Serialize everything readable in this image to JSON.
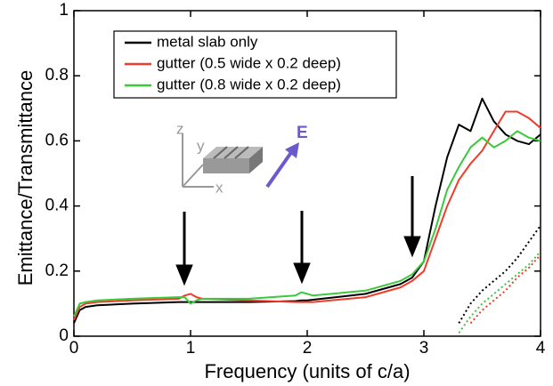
{
  "chart_data": {
    "type": "line",
    "xlabel": "Frequency (units of c/a)",
    "ylabel": "Emittance/Transmittance",
    "x": [
      0,
      0.05,
      0.1,
      0.2,
      0.5,
      0.9,
      0.95,
      1,
      1.05,
      1.1,
      1.5,
      1.9,
      1.95,
      2,
      2.05,
      2.5,
      2.8,
      2.9,
      3,
      3.1,
      3.2,
      3.3,
      3.4,
      3.5,
      3.6,
      3.7,
      3.8,
      3.9,
      4
    ],
    "series": [
      {
        "name": "metal slab only",
        "color": "#000000",
        "style": "solid",
        "values": [
          0.04,
          0.08,
          0.09,
          0.095,
          0.1,
          0.105,
          0.105,
          0.105,
          0.105,
          0.105,
          0.105,
          0.108,
          0.11,
          0.11,
          0.112,
          0.13,
          0.16,
          0.18,
          0.23,
          0.4,
          0.55,
          0.65,
          0.63,
          0.73,
          0.66,
          0.62,
          0.6,
          0.59,
          0.62
        ]
      },
      {
        "name": "gutter (0.5 wide x 0.2 deep)",
        "color": "#f03c28",
        "style": "solid",
        "values": [
          0.05,
          0.09,
          0.1,
          0.105,
          0.11,
          0.115,
          0.125,
          0.13,
          0.12,
          0.115,
          0.11,
          0.105,
          0.105,
          0.105,
          0.105,
          0.12,
          0.15,
          0.17,
          0.2,
          0.3,
          0.4,
          0.48,
          0.53,
          0.57,
          0.63,
          0.69,
          0.69,
          0.67,
          0.64
        ]
      },
      {
        "name": "gutter (0.8 wide x 0.2 deep)",
        "color": "#3cc83c",
        "style": "solid",
        "values": [
          0.06,
          0.1,
          0.105,
          0.11,
          0.115,
          0.12,
          0.12,
          0.1,
          0.11,
          0.115,
          0.115,
          0.125,
          0.135,
          0.13,
          0.125,
          0.14,
          0.17,
          0.19,
          0.23,
          0.33,
          0.45,
          0.52,
          0.58,
          0.61,
          0.58,
          0.6,
          0.63,
          0.61,
          0.6
        ]
      },
      {
        "color": "#000000",
        "style": "dotted",
        "values": [
          null,
          null,
          null,
          null,
          null,
          null,
          null,
          null,
          null,
          null,
          null,
          null,
          null,
          null,
          null,
          null,
          null,
          null,
          null,
          null,
          null,
          0.04,
          0.1,
          0.14,
          0.17,
          0.2,
          0.24,
          0.29,
          0.34
        ]
      },
      {
        "color": "#3cc83c",
        "style": "dotted",
        "values": [
          null,
          null,
          null,
          null,
          null,
          null,
          null,
          null,
          null,
          null,
          null,
          null,
          null,
          null,
          null,
          null,
          null,
          null,
          null,
          null,
          null,
          0.01,
          0.06,
          0.1,
          0.13,
          0.16,
          0.19,
          0.22,
          0.26
        ]
      },
      {
        "color": "#f03c28",
        "style": "dotted",
        "values": [
          null,
          null,
          null,
          null,
          null,
          null,
          null,
          null,
          null,
          null,
          null,
          null,
          null,
          null,
          null,
          null,
          null,
          null,
          null,
          null,
          null,
          null,
          0.04,
          0.08,
          0.11,
          0.14,
          0.18,
          0.21,
          0.25
        ]
      }
    ],
    "xlim": [
      0,
      4
    ],
    "xticks": [
      0,
      1,
      2,
      3,
      4
    ],
    "ylim": [
      0,
      1
    ],
    "yticks": [
      0,
      0.2,
      0.4,
      0.6,
      0.8,
      1
    ],
    "legend": "upper left",
    "inset_labels": [
      "z",
      "y",
      "x",
      "E"
    ]
  }
}
